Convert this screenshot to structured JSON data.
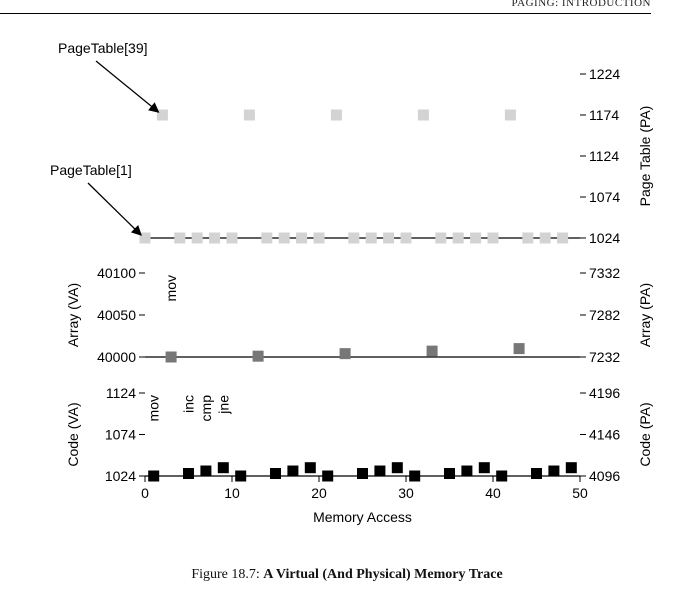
{
  "header": {
    "running_title": "PAGING: INTRODUCTION"
  },
  "caption": {
    "number": "Figure 18.7:",
    "title": "A Virtual (And Physical) Memory Trace"
  },
  "chart_data": [
    {
      "type": "scatter",
      "id": "page-table",
      "ylabel_right": "Page Table (PA)",
      "ylim": [
        1024,
        1224
      ],
      "yticks": [
        1024,
        1074,
        1124,
        1174,
        1224
      ],
      "xlim": [
        0,
        50
      ],
      "color": "#d3d3d3",
      "annotations": [
        {
          "text": "PageTable[39]",
          "target": [
            2,
            1174
          ]
        },
        {
          "text": "PageTable[1]",
          "target": [
            0,
            1024
          ]
        }
      ],
      "points": [
        [
          2,
          1174
        ],
        [
          12,
          1174
        ],
        [
          22,
          1174
        ],
        [
          32,
          1174
        ],
        [
          42,
          1174
        ],
        [
          0,
          1024
        ],
        [
          4,
          1024
        ],
        [
          6,
          1024
        ],
        [
          8,
          1024
        ],
        [
          10,
          1024
        ],
        [
          14,
          1024
        ],
        [
          16,
          1024
        ],
        [
          18,
          1024
        ],
        [
          20,
          1024
        ],
        [
          24,
          1024
        ],
        [
          26,
          1024
        ],
        [
          28,
          1024
        ],
        [
          30,
          1024
        ],
        [
          34,
          1024
        ],
        [
          36,
          1024
        ],
        [
          38,
          1024
        ],
        [
          40,
          1024
        ],
        [
          44,
          1024
        ],
        [
          46,
          1024
        ],
        [
          48,
          1024
        ]
      ]
    },
    {
      "type": "scatter",
      "id": "array",
      "ylabel_left": "Array (VA)",
      "ylabel_right": "Array (PA)",
      "ylim": [
        40000,
        40100
      ],
      "yticks_left": [
        40000,
        40050,
        40100
      ],
      "yticks_right": [
        7232,
        7282,
        7332
      ],
      "xlim": [
        0,
        50
      ],
      "color": "#777777",
      "annotations": [
        {
          "text": "mov",
          "x": 3
        }
      ],
      "points": [
        [
          3,
          40000
        ],
        [
          13,
          40001
        ],
        [
          23,
          40004
        ],
        [
          33,
          40007
        ],
        [
          43,
          40010
        ]
      ]
    },
    {
      "type": "scatter",
      "id": "code",
      "ylabel_left": "Code (VA)",
      "ylabel_right": "Code (PA)",
      "ylim": [
        1024,
        1124
      ],
      "yticks_left": [
        1024,
        1074,
        1124
      ],
      "yticks_right": [
        4096,
        4146,
        4196
      ],
      "xlim": [
        0,
        50
      ],
      "xticks": [
        0,
        10,
        20,
        30,
        40,
        50
      ],
      "xlabel": "Memory Access",
      "color": "#000000",
      "annotations": [
        {
          "text": "mov",
          "x": 1
        },
        {
          "text": "inc",
          "x": 5
        },
        {
          "text": "cmp",
          "x": 7
        },
        {
          "text": "jne",
          "x": 9
        }
      ],
      "points": [
        [
          1,
          1024
        ],
        [
          5,
          1027
        ],
        [
          7,
          1030
        ],
        [
          9,
          1034
        ],
        [
          11,
          1024
        ],
        [
          15,
          1027
        ],
        [
          17,
          1030
        ],
        [
          19,
          1034
        ],
        [
          21,
          1024
        ],
        [
          25,
          1027
        ],
        [
          27,
          1030
        ],
        [
          29,
          1034
        ],
        [
          31,
          1024
        ],
        [
          35,
          1027
        ],
        [
          37,
          1030
        ],
        [
          39,
          1034
        ],
        [
          41,
          1024
        ],
        [
          45,
          1027
        ],
        [
          47,
          1030
        ],
        [
          49,
          1034
        ]
      ]
    }
  ]
}
